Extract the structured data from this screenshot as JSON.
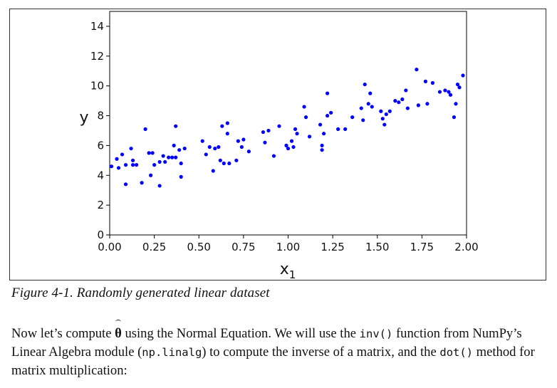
{
  "figure": {
    "caption": "Figure 4-1. Randomly generated linear dataset"
  },
  "chart_data": {
    "type": "scatter",
    "xlabel": "x",
    "xlabel_sub": "1",
    "ylabel": "y",
    "xlim": [
      0,
      2
    ],
    "ylim": [
      0,
      15
    ],
    "xticks": [
      0,
      0.25,
      0.5,
      0.75,
      1.0,
      1.25,
      1.5,
      1.75,
      2.0
    ],
    "xtick_labels": [
      "0.00",
      "0.25",
      "0.50",
      "0.75",
      "1.00",
      "1.25",
      "1.50",
      "1.75",
      "2.00"
    ],
    "yticks": [
      0,
      2,
      4,
      6,
      8,
      10,
      12,
      14
    ],
    "ytick_labels": [
      "0",
      "2",
      "4",
      "6",
      "8",
      "10",
      "12",
      "14"
    ],
    "grid": false,
    "marker_color": "#0000ff",
    "points": [
      [
        0.01,
        4.6
      ],
      [
        0.04,
        5.1
      ],
      [
        0.05,
        4.5
      ],
      [
        0.07,
        5.4
      ],
      [
        0.09,
        3.4
      ],
      [
        0.09,
        4.7
      ],
      [
        0.12,
        5.8
      ],
      [
        0.13,
        5.0
      ],
      [
        0.13,
        4.7
      ],
      [
        0.15,
        4.7
      ],
      [
        0.18,
        3.5
      ],
      [
        0.2,
        7.1
      ],
      [
        0.22,
        5.5
      ],
      [
        0.23,
        4.0
      ],
      [
        0.24,
        5.5
      ],
      [
        0.25,
        4.7
      ],
      [
        0.28,
        3.3
      ],
      [
        0.28,
        4.9
      ],
      [
        0.3,
        5.3
      ],
      [
        0.31,
        4.9
      ],
      [
        0.33,
        5.2
      ],
      [
        0.35,
        5.2
      ],
      [
        0.36,
        6.0
      ],
      [
        0.37,
        7.3
      ],
      [
        0.37,
        5.2
      ],
      [
        0.39,
        5.7
      ],
      [
        0.4,
        4.8
      ],
      [
        0.4,
        3.9
      ],
      [
        0.42,
        5.8
      ],
      [
        0.52,
        6.3
      ],
      [
        0.54,
        5.4
      ],
      [
        0.56,
        5.9
      ],
      [
        0.58,
        4.3
      ],
      [
        0.59,
        5.8
      ],
      [
        0.61,
        5.9
      ],
      [
        0.62,
        5.0
      ],
      [
        0.63,
        7.3
      ],
      [
        0.64,
        4.8
      ],
      [
        0.66,
        6.8
      ],
      [
        0.66,
        7.5
      ],
      [
        0.67,
        4.8
      ],
      [
        0.71,
        5.0
      ],
      [
        0.72,
        6.3
      ],
      [
        0.74,
        5.9
      ],
      [
        0.75,
        6.4
      ],
      [
        0.78,
        5.6
      ],
      [
        0.86,
        6.9
      ],
      [
        0.87,
        6.2
      ],
      [
        0.89,
        7.0
      ],
      [
        0.92,
        5.3
      ],
      [
        0.95,
        7.3
      ],
      [
        0.99,
        6.0
      ],
      [
        1.0,
        5.8
      ],
      [
        1.02,
        6.3
      ],
      [
        1.03,
        5.9
      ],
      [
        1.04,
        7.1
      ],
      [
        1.05,
        6.8
      ],
      [
        1.09,
        8.6
      ],
      [
        1.1,
        7.9
      ],
      [
        1.12,
        6.6
      ],
      [
        1.18,
        7.4
      ],
      [
        1.19,
        5.7
      ],
      [
        1.19,
        6.0
      ],
      [
        1.2,
        6.8
      ],
      [
        1.22,
        9.5
      ],
      [
        1.22,
        8.0
      ],
      [
        1.24,
        8.2
      ],
      [
        1.28,
        7.1
      ],
      [
        1.32,
        7.1
      ],
      [
        1.36,
        7.9
      ],
      [
        1.41,
        8.5
      ],
      [
        1.42,
        7.7
      ],
      [
        1.43,
        10.1
      ],
      [
        1.45,
        8.8
      ],
      [
        1.46,
        9.5
      ],
      [
        1.47,
        8.6
      ],
      [
        1.52,
        8.3
      ],
      [
        1.53,
        7.8
      ],
      [
        1.54,
        7.4
      ],
      [
        1.55,
        8.1
      ],
      [
        1.57,
        8.3
      ],
      [
        1.6,
        9.0
      ],
      [
        1.62,
        8.9
      ],
      [
        1.64,
        9.1
      ],
      [
        1.66,
        9.7
      ],
      [
        1.67,
        8.5
      ],
      [
        1.72,
        11.1
      ],
      [
        1.73,
        8.7
      ],
      [
        1.77,
        10.3
      ],
      [
        1.78,
        8.8
      ],
      [
        1.81,
        10.2
      ],
      [
        1.85,
        9.6
      ],
      [
        1.88,
        9.7
      ],
      [
        1.9,
        9.6
      ],
      [
        1.91,
        9.4
      ],
      [
        1.93,
        7.9
      ],
      [
        1.94,
        8.8
      ],
      [
        1.95,
        10.1
      ],
      [
        1.98,
        10.7
      ],
      [
        1.96,
        9.9
      ]
    ]
  },
  "paragraph": {
    "part1": "Now let’s compute ",
    "theta": "θ",
    "part2": " using the Normal Equation. We will use the ",
    "code1": "inv()",
    "part3": " function from NumPy’s Linear Algebra module (",
    "code2": "np.linalg",
    "part4": ") to compute the inverse of a matrix, and the ",
    "code3": "dot()",
    "part5": " method for matrix multiplication:"
  }
}
